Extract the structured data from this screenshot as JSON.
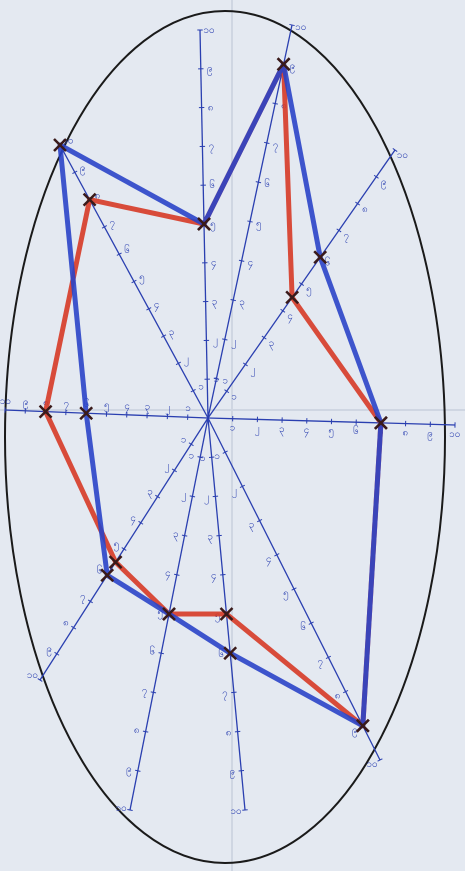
{
  "chart_data": {
    "type": "radar",
    "rlim": [
      0,
      10
    ],
    "rticks": [
      {
        "value": 1,
        "label": "၁"
      },
      {
        "value": 2,
        "label": "၂"
      },
      {
        "value": 3,
        "label": "၃"
      },
      {
        "value": 4,
        "label": "၄"
      },
      {
        "value": 5,
        "label": "၅"
      },
      {
        "value": 6,
        "label": "၆"
      },
      {
        "value": 7,
        "label": "၇"
      },
      {
        "value": 8,
        "label": "၈"
      },
      {
        "value": 9,
        "label": "၉"
      },
      {
        "value": 10,
        "label": "၁၀"
      }
    ],
    "series": [
      {
        "color": "#d63a26",
        "values": [
          5,
          9,
          4.5,
          7,
          9,
          5,
          5,
          5.5,
          8,
          8
        ]
      },
      {
        "color": "#2a44c8",
        "values": [
          5,
          9,
          6,
          7,
          9,
          6,
          5,
          6,
          6,
          10
        ]
      }
    ]
  }
}
